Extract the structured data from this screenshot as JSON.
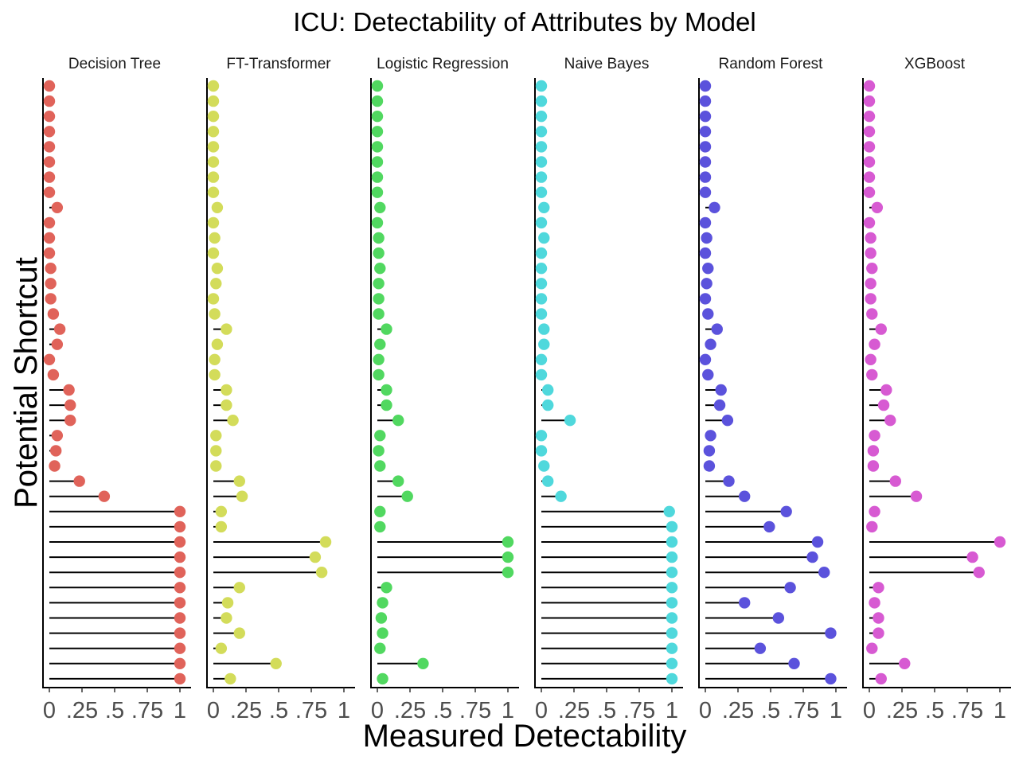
{
  "chart_data": {
    "type": "lollipop",
    "title": "ICU: Detectability of Attributes by Model",
    "xlabel": "Measured Detectability",
    "ylabel": "Potential Shortcut",
    "xlim": [
      0,
      1
    ],
    "x_ticks": [
      0,
      0.25,
      0.5,
      0.75,
      1
    ],
    "x_tick_labels": [
      "0",
      ".25",
      ".5",
      ".75",
      "1"
    ],
    "y_tick_labels_visible": false,
    "row_count": 40,
    "row_order": "top-to-bottom",
    "grid": false,
    "legend": "none",
    "panels": [
      {
        "name": "Decision Tree",
        "color": "#e0635a",
        "values": [
          0,
          0,
          0,
          0,
          0,
          0,
          0,
          0,
          0.06,
          0,
          0,
          0,
          0.01,
          0.01,
          0.01,
          0.03,
          0.08,
          0.06,
          0,
          0.03,
          0.15,
          0.16,
          0.16,
          0.06,
          0.05,
          0.04,
          0.23,
          0.42,
          1,
          1,
          1,
          1,
          1,
          1,
          1,
          1,
          1,
          1,
          1,
          1
        ]
      },
      {
        "name": "FT-Transformer",
        "color": "#d3dc5a",
        "values": [
          0,
          0,
          0,
          0,
          0,
          0,
          0,
          0,
          0.03,
          0,
          0.01,
          0,
          0.03,
          0.02,
          0,
          0.01,
          0.1,
          0.03,
          0.01,
          0.01,
          0.1,
          0.1,
          0.15,
          0.02,
          0.02,
          0.02,
          0.2,
          0.22,
          0.06,
          0.06,
          0.86,
          0.78,
          0.83,
          0.2,
          0.11,
          0.1,
          0.2,
          0.06,
          0.48,
          0.13
        ]
      },
      {
        "name": "Logistic Regression",
        "color": "#51d860",
        "values": [
          0,
          0,
          0,
          0,
          0,
          0,
          0,
          0,
          0.02,
          0,
          0.01,
          0.01,
          0.02,
          0.01,
          0.01,
          0.01,
          0.07,
          0.02,
          0.01,
          0.01,
          0.07,
          0.07,
          0.16,
          0.02,
          0.01,
          0.02,
          0.16,
          0.23,
          0.02,
          0.02,
          1,
          1,
          1,
          0.07,
          0.04,
          0.03,
          0.04,
          0.02,
          0.35,
          0.04
        ]
      },
      {
        "name": "Naive Bayes",
        "color": "#4fd8dc",
        "values": [
          0,
          0,
          0,
          0,
          0,
          0,
          0,
          0,
          0.02,
          0,
          0.02,
          0,
          0,
          0,
          0,
          0,
          0.02,
          0.02,
          0,
          0,
          0.05,
          0.05,
          0.22,
          0,
          0,
          0.02,
          0.05,
          0.15,
          0.98,
          1,
          1,
          1,
          1,
          1,
          1,
          1,
          1,
          1,
          1,
          1
        ]
      },
      {
        "name": "Random Forest",
        "color": "#5b52dc",
        "values": [
          0,
          0,
          0,
          0,
          0,
          0,
          0,
          0,
          0.07,
          0,
          0.01,
          0,
          0.02,
          0.01,
          0,
          0.02,
          0.09,
          0.04,
          0,
          0.02,
          0.12,
          0.11,
          0.17,
          0.04,
          0.03,
          0.03,
          0.18,
          0.3,
          0.62,
          0.49,
          0.86,
          0.82,
          0.91,
          0.65,
          0.3,
          0.56,
          0.96,
          0.42,
          0.68,
          0.96
        ]
      },
      {
        "name": "XGBoost",
        "color": "#d75ad2",
        "values": [
          0,
          0,
          0,
          0,
          0,
          0,
          0,
          0,
          0.06,
          0,
          0.01,
          0.01,
          0.02,
          0.01,
          0.01,
          0.02,
          0.09,
          0.04,
          0.01,
          0.02,
          0.13,
          0.11,
          0.16,
          0.04,
          0.03,
          0.03,
          0.2,
          0.36,
          0.04,
          0.02,
          1,
          0.79,
          0.84,
          0.07,
          0.04,
          0.07,
          0.07,
          0.02,
          0.27,
          0.09
        ]
      }
    ]
  }
}
